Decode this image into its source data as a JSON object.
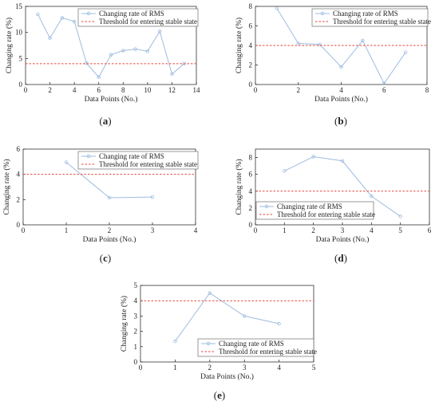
{
  "chart_data": [
    {
      "type": "line",
      "caption": "(a)",
      "caption_letter": "a",
      "xlabel": "Data Points (No.)",
      "ylabel": "Changing rate (%)",
      "xlim": [
        0,
        14
      ],
      "ylim": [
        0,
        15
      ],
      "xticks": [
        "0",
        "2",
        "4",
        "6",
        "8",
        "10",
        "12",
        "14"
      ],
      "yticks": [
        "0",
        "5",
        "10",
        "15"
      ],
      "legend_placement": "top-right",
      "grid": false,
      "series": [
        {
          "name": "Changing rate of RMS",
          "style": "line-marker",
          "color": "#9fbde0",
          "x": [
            1,
            2,
            3,
            4,
            5,
            6,
            7,
            8,
            9,
            10,
            11,
            12,
            13
          ],
          "y": [
            13.5,
            8.9,
            12.8,
            12.1,
            4.1,
            1.4,
            5.7,
            6.5,
            6.8,
            6.4,
            10.2,
            2.0,
            4.0
          ]
        },
        {
          "name": "Threshold for entering stable state",
          "style": "dashed",
          "color": "#e8463a",
          "x": [
            0,
            14
          ],
          "y": [
            4,
            4
          ]
        }
      ]
    },
    {
      "type": "line",
      "caption": "(b)",
      "caption_letter": "b",
      "xlabel": "Data Points (No.)",
      "ylabel": "Changing rate (%)",
      "xlim": [
        0,
        8
      ],
      "ylim": [
        0,
        8
      ],
      "xticks": [
        "0",
        "2",
        "4",
        "6",
        "8"
      ],
      "yticks": [
        "0",
        "2",
        "4",
        "6",
        "8"
      ],
      "legend_placement": "top-right",
      "grid": false,
      "series": [
        {
          "name": "Changing rate of RMS",
          "style": "line-marker",
          "color": "#9fbde0",
          "x": [
            1,
            2,
            3,
            4,
            5,
            6,
            7
          ],
          "y": [
            7.8,
            4.2,
            4.1,
            1.8,
            4.5,
            0.1,
            3.3
          ]
        },
        {
          "name": "Threshold for entering stable state",
          "style": "dashed",
          "color": "#e8463a",
          "x": [
            0,
            8
          ],
          "y": [
            4,
            4
          ]
        }
      ]
    },
    {
      "type": "line",
      "caption": "(c)",
      "caption_letter": "c",
      "xlabel": "Data Points (No.)",
      "ylabel": "Changing rate (%)",
      "xlim": [
        0,
        4
      ],
      "ylim": [
        0,
        6
      ],
      "xticks": [
        "0",
        "1",
        "2",
        "3",
        "4"
      ],
      "yticks": [
        "0",
        "2",
        "4",
        "6"
      ],
      "legend_placement": "top-right",
      "grid": false,
      "series": [
        {
          "name": "Changing rate of RMS",
          "style": "line-marker",
          "color": "#9fbde0",
          "x": [
            1,
            2,
            3
          ],
          "y": [
            4.95,
            2.15,
            2.2
          ]
        },
        {
          "name": "Threshold for entering stable state",
          "style": "dashed",
          "color": "#e8463a",
          "x": [
            0,
            4
          ],
          "y": [
            4,
            4
          ]
        }
      ]
    },
    {
      "type": "line",
      "caption": "(d)",
      "caption_letter": "d",
      "xlabel": "Data Points (No.)",
      "ylabel": "Changing rate (%)",
      "xlim": [
        0,
        6
      ],
      "ylim": [
        0,
        9
      ],
      "xticks": [
        "0",
        "1",
        "2",
        "3",
        "4",
        "5",
        "6"
      ],
      "yticks": [
        "0",
        "2",
        "4",
        "6",
        "8"
      ],
      "legend_placement": "bottom-left",
      "grid": false,
      "series": [
        {
          "name": "Changing rate of RMS",
          "style": "line-marker",
          "color": "#9fbde0",
          "x": [
            1,
            2,
            3,
            4,
            5
          ],
          "y": [
            6.4,
            8.1,
            7.6,
            3.4,
            1.0
          ]
        },
        {
          "name": "Threshold for entering stable state",
          "style": "dashed",
          "color": "#e8463a",
          "x": [
            0,
            6
          ],
          "y": [
            4,
            4
          ]
        }
      ]
    },
    {
      "type": "line",
      "caption": "(e)",
      "caption_letter": "e",
      "xlabel": "Data Points (No.)",
      "ylabel": "Changing rate (%)",
      "xlim": [
        0,
        5
      ],
      "ylim": [
        0,
        5
      ],
      "xticks": [
        "0",
        "1",
        "2",
        "3",
        "4",
        "5"
      ],
      "yticks": [
        "0",
        "1",
        "2",
        "3",
        "4",
        "5"
      ],
      "legend_placement": "bottom-right",
      "grid": false,
      "series": [
        {
          "name": "Changing rate of RMS",
          "style": "line-marker",
          "color": "#9fbde0",
          "x": [
            1,
            2,
            3,
            4
          ],
          "y": [
            1.35,
            4.5,
            3.0,
            2.5
          ]
        },
        {
          "name": "Threshold for entering stable state",
          "style": "dashed",
          "color": "#e8463a",
          "x": [
            0,
            5
          ],
          "y": [
            4,
            4
          ]
        }
      ]
    }
  ]
}
